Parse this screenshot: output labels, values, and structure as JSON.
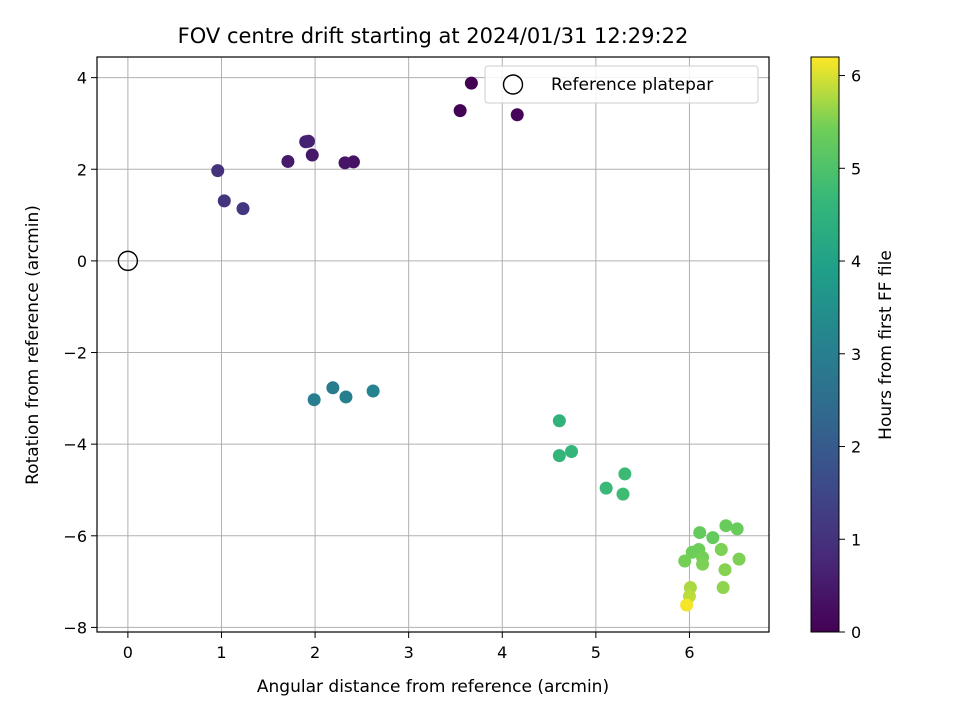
{
  "chart_data": {
    "type": "scatter",
    "title": "FOV centre drift starting at 2024/01/31 12:29:22",
    "xlabel": "Angular distance from reference (arcmin)",
    "ylabel": "Rotation from reference (arcmin)",
    "xlim": [
      -0.33,
      6.85
    ],
    "ylim": [
      -8.1,
      4.45
    ],
    "xticks": [
      0,
      1,
      2,
      3,
      4,
      5,
      6
    ],
    "yticks": [
      4,
      2,
      0,
      -2,
      -4,
      -6,
      -8
    ],
    "xtick_labels": [
      "0",
      "1",
      "2",
      "3",
      "4",
      "5",
      "6"
    ],
    "ytick_labels": [
      "4",
      "2",
      "0",
      "−2",
      "−4",
      "−6",
      "−8"
    ],
    "grid": true,
    "colormap": "viridis",
    "colorbar": {
      "label": "Hours from first FF file",
      "range": [
        0,
        6.2
      ],
      "ticks": [
        0,
        1,
        2,
        3,
        4,
        5,
        6
      ],
      "tick_labels": [
        "0",
        "1",
        "2",
        "3",
        "4",
        "5",
        "6"
      ]
    },
    "legend": {
      "placement": "top-right",
      "entries": [
        "Reference platepar"
      ]
    },
    "reference": {
      "x": 0,
      "y": 0,
      "marker": "open-circle",
      "edge_color": "#000000"
    },
    "points": [
      {
        "x": 3.67,
        "y": 3.88,
        "hours": 0.0
      },
      {
        "x": 3.55,
        "y": 3.28,
        "hours": 0.05
      },
      {
        "x": 4.16,
        "y": 3.19,
        "hours": 0.1
      },
      {
        "x": 2.41,
        "y": 2.16,
        "hours": 0.35
      },
      {
        "x": 2.32,
        "y": 2.14,
        "hours": 0.4
      },
      {
        "x": 1.97,
        "y": 2.31,
        "hours": 0.45
      },
      {
        "x": 1.71,
        "y": 2.17,
        "hours": 0.5
      },
      {
        "x": 1.9,
        "y": 2.6,
        "hours": 0.6
      },
      {
        "x": 1.93,
        "y": 2.61,
        "hours": 0.65
      },
      {
        "x": 0.96,
        "y": 1.97,
        "hours": 1.0
      },
      {
        "x": 1.03,
        "y": 1.31,
        "hours": 1.05
      },
      {
        "x": 1.23,
        "y": 1.14,
        "hours": 1.1
      },
      {
        "x": 2.19,
        "y": -2.77,
        "hours": 2.9
      },
      {
        "x": 1.99,
        "y": -3.03,
        "hours": 2.95
      },
      {
        "x": 2.33,
        "y": -2.97,
        "hours": 3.0
      },
      {
        "x": 2.62,
        "y": -2.84,
        "hours": 3.1
      },
      {
        "x": 4.61,
        "y": -3.49,
        "hours": 4.5
      },
      {
        "x": 4.61,
        "y": -4.25,
        "hours": 4.55
      },
      {
        "x": 4.74,
        "y": -4.16,
        "hours": 4.6
      },
      {
        "x": 5.11,
        "y": -4.96,
        "hours": 4.7
      },
      {
        "x": 5.31,
        "y": -4.65,
        "hours": 4.75
      },
      {
        "x": 5.29,
        "y": -5.09,
        "hours": 4.8
      },
      {
        "x": 6.11,
        "y": -5.93,
        "hours": 5.3
      },
      {
        "x": 6.25,
        "y": -6.04,
        "hours": 5.3
      },
      {
        "x": 6.39,
        "y": -5.78,
        "hours": 5.35
      },
      {
        "x": 6.51,
        "y": -5.85,
        "hours": 5.35
      },
      {
        "x": 6.03,
        "y": -6.36,
        "hours": 5.4
      },
      {
        "x": 6.1,
        "y": -6.3,
        "hours": 5.4
      },
      {
        "x": 5.95,
        "y": -6.55,
        "hours": 5.45
      },
      {
        "x": 6.14,
        "y": -6.47,
        "hours": 5.45
      },
      {
        "x": 6.14,
        "y": -6.62,
        "hours": 5.5
      },
      {
        "x": 6.34,
        "y": -6.3,
        "hours": 5.5
      },
      {
        "x": 6.53,
        "y": -6.51,
        "hours": 5.5
      },
      {
        "x": 6.38,
        "y": -6.74,
        "hours": 5.55
      },
      {
        "x": 6.36,
        "y": -7.13,
        "hours": 5.6
      },
      {
        "x": 6.01,
        "y": -7.13,
        "hours": 5.75
      },
      {
        "x": 6.0,
        "y": -7.32,
        "hours": 5.85
      },
      {
        "x": 5.97,
        "y": -7.51,
        "hours": 6.15
      }
    ]
  }
}
